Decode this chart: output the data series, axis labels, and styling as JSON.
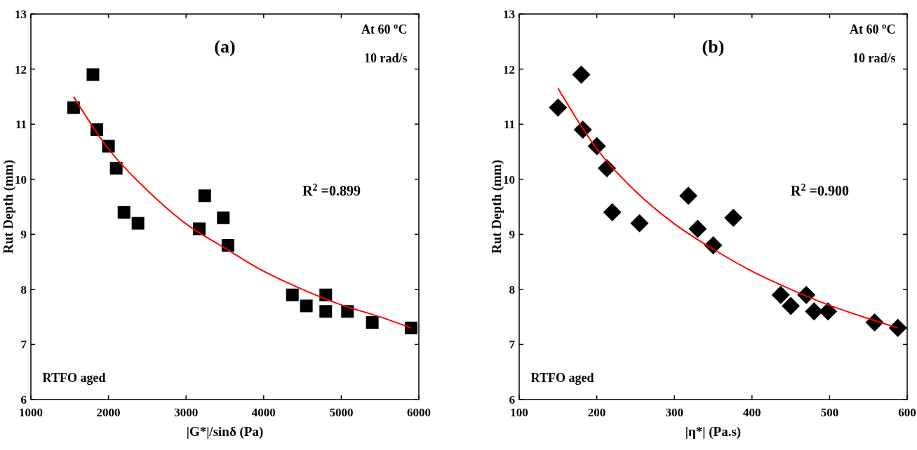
{
  "chart_data": [
    {
      "type": "scatter",
      "xlabel": "|G*|/sinδ (Pa)",
      "ylabel": "Rut Depth (mm)",
      "xlim": [
        1000,
        6000
      ],
      "xticks": [
        1000,
        2000,
        3000,
        4000,
        5000,
        6000
      ],
      "ylim": [
        6,
        13
      ],
      "yticks": [
        6,
        7,
        8,
        9,
        10,
        11,
        12,
        13
      ],
      "grid": false,
      "annotations": [
        "(a)",
        "At 60 $^{o}$C",
        "10 rad/s",
        "R$^{2}$ =0.899",
        "RTFO aged"
      ],
      "series": [
        {
          "color": "#000000",
          "marker": "square",
          "x": [
            1550,
            1800,
            1850,
            2000,
            2100,
            2200,
            2380,
            3170,
            3240,
            3480,
            3540,
            4370,
            4550,
            4800,
            4800,
            5080,
            5400,
            5900
          ],
          "values": [
            11.3,
            11.9,
            10.9,
            10.6,
            10.2,
            9.4,
            9.2,
            9.1,
            9.7,
            9.3,
            8.8,
            7.9,
            7.7,
            7.9,
            7.6,
            7.6,
            7.4,
            7.3
          ]
        },
        {
          "type": "line",
          "color": "#ff0000",
          "marker": "none",
          "x": [
            1550,
            2000,
            2500,
            3000,
            3500,
            4000,
            4500,
            5000,
            5500,
            5900
          ],
          "values": [
            11.5,
            10.55,
            9.8,
            9.19,
            8.75,
            8.33,
            8.0,
            7.72,
            7.5,
            7.3
          ]
        }
      ]
    },
    {
      "type": "scatter",
      "xlabel": "|η*| (Pa.s)",
      "ylabel": "Rut Depth (mm)",
      "xlim": [
        100,
        600
      ],
      "xticks": [
        100,
        200,
        300,
        400,
        500,
        600
      ],
      "ylim": [
        6,
        13
      ],
      "yticks": [
        6,
        7,
        8,
        9,
        10,
        11,
        12,
        13
      ],
      "grid": false,
      "annotations": [
        "(b)",
        "At 60 $^{o}$C",
        "10 rad/s",
        "R$^{2}$ =0.900",
        "RTFO aged"
      ],
      "series": [
        {
          "color": "#000000",
          "marker": "diamond",
          "x": [
            150,
            180,
            182,
            200,
            213,
            220,
            255,
            318,
            330,
            350,
            376,
            437,
            450,
            470,
            480,
            498,
            558,
            588
          ],
          "values": [
            11.3,
            11.9,
            10.9,
            10.6,
            10.2,
            9.4,
            9.2,
            9.7,
            9.1,
            8.8,
            9.3,
            7.9,
            7.7,
            7.9,
            7.6,
            7.6,
            7.4,
            7.3
          ]
        },
        {
          "type": "line",
          "color": "#ff0000",
          "marker": "none",
          "x": [
            150,
            200,
            250,
            300,
            350,
            400,
            450,
            500,
            550,
            588
          ],
          "values": [
            11.65,
            10.55,
            9.78,
            9.19,
            8.73,
            8.33,
            8.0,
            7.71,
            7.47,
            7.3
          ]
        }
      ]
    }
  ]
}
